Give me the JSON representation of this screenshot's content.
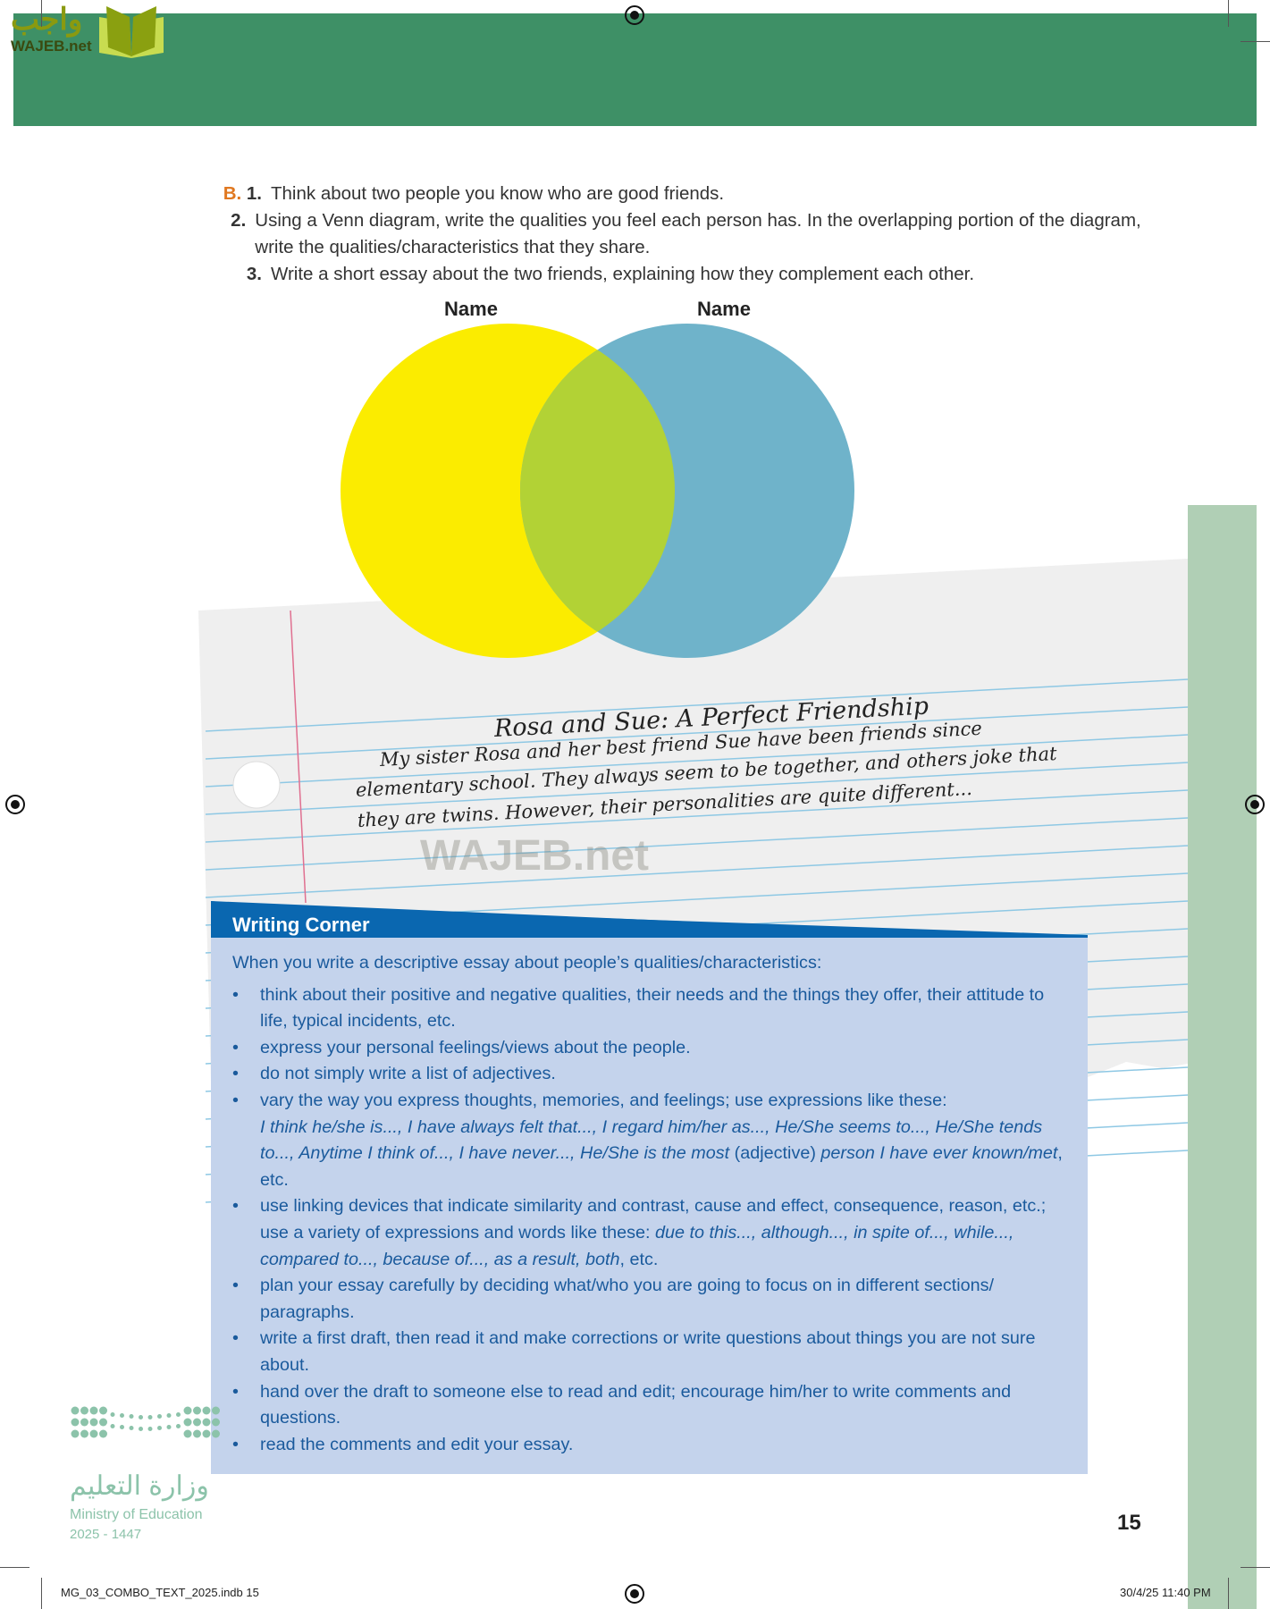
{
  "watermark": {
    "arabic": "واجب",
    "latin": "WAJEB.net"
  },
  "instructions": {
    "section": "B.",
    "items": [
      {
        "num": "1.",
        "text": "Think about two people you know who are good friends."
      },
      {
        "num": "2.",
        "text": "Using a Venn diagram, write the qualities you feel each person has. In the overlapping portion of the diagram, write the qualities/characteristics that they share."
      },
      {
        "num": "3.",
        "text": "Write a short essay about the two friends, explaining how they complement each other."
      }
    ]
  },
  "venn": {
    "left_label": "Name",
    "right_label": "Name",
    "left_color": "#fbec00",
    "right_color": "#6fb3ca",
    "overlap_color": "#b2d235"
  },
  "essay": {
    "title": "Rosa and Sue: A Perfect Friendship",
    "lines": [
      "My sister Rosa and her best friend Sue have been friends since",
      "elementary school. They always seem to be together, and others joke that",
      "they are twins. However, their personalities are quite different..."
    ]
  },
  "writing_corner": {
    "title": "Writing Corner",
    "intro": "When you write a descriptive essay about people’s qualities/characteristics:",
    "bullets": [
      "think about their positive and negative qualities, their needs and the things they offer, their attitude to life, typical incidents, etc.",
      "express your personal feelings/views about the people.",
      "do not simply write a list of adjectives.",
      "vary the way you express thoughts, memories, and feelings; use expressions like these:",
      "use linking devices that indicate similarity and contrast, cause and effect, consequence, reason, etc.; use a variety of expressions and words like these:",
      "plan your essay carefully by deciding what/who you are going to focus on in different sections/ paragraphs.",
      "write a first draft, then read it and make corrections or write questions about things you are not sure about.",
      "hand over the draft to someone else to read and edit; encourage him/her to write comments and questions.",
      "read the comments and edit your essay."
    ],
    "expressions_1": "I think he/she is..., I have always felt that..., I regard him/her as..., He/She seems to..., He/She tends to..., Anytime I think of..., I have never..., He/She is the most",
    "expressions_1_mid": "(adjective)",
    "expressions_1_end": "person I have ever known/met",
    "expressions_1_tail": ", etc.",
    "expressions_2": "due to this..., although..., in spite of..., while..., compared to..., because of..., as a result, both",
    "expressions_2_tail": ", etc."
  },
  "ministry": {
    "arabic": "وزارة التعليم",
    "english": "Ministry of Education",
    "year": "2025 - 1447"
  },
  "page_number": "15",
  "footer": {
    "file": "MG_03_COMBO_TEXT_2025.indb   15",
    "date": "30/4/25   11:40 PM"
  },
  "colors": {
    "header": "#3e9066",
    "strip": "#b0cfb5",
    "wc_blue": "#0a67b0",
    "wc_box": "#c4d3ec",
    "wc_text": "#1a5a9c"
  }
}
